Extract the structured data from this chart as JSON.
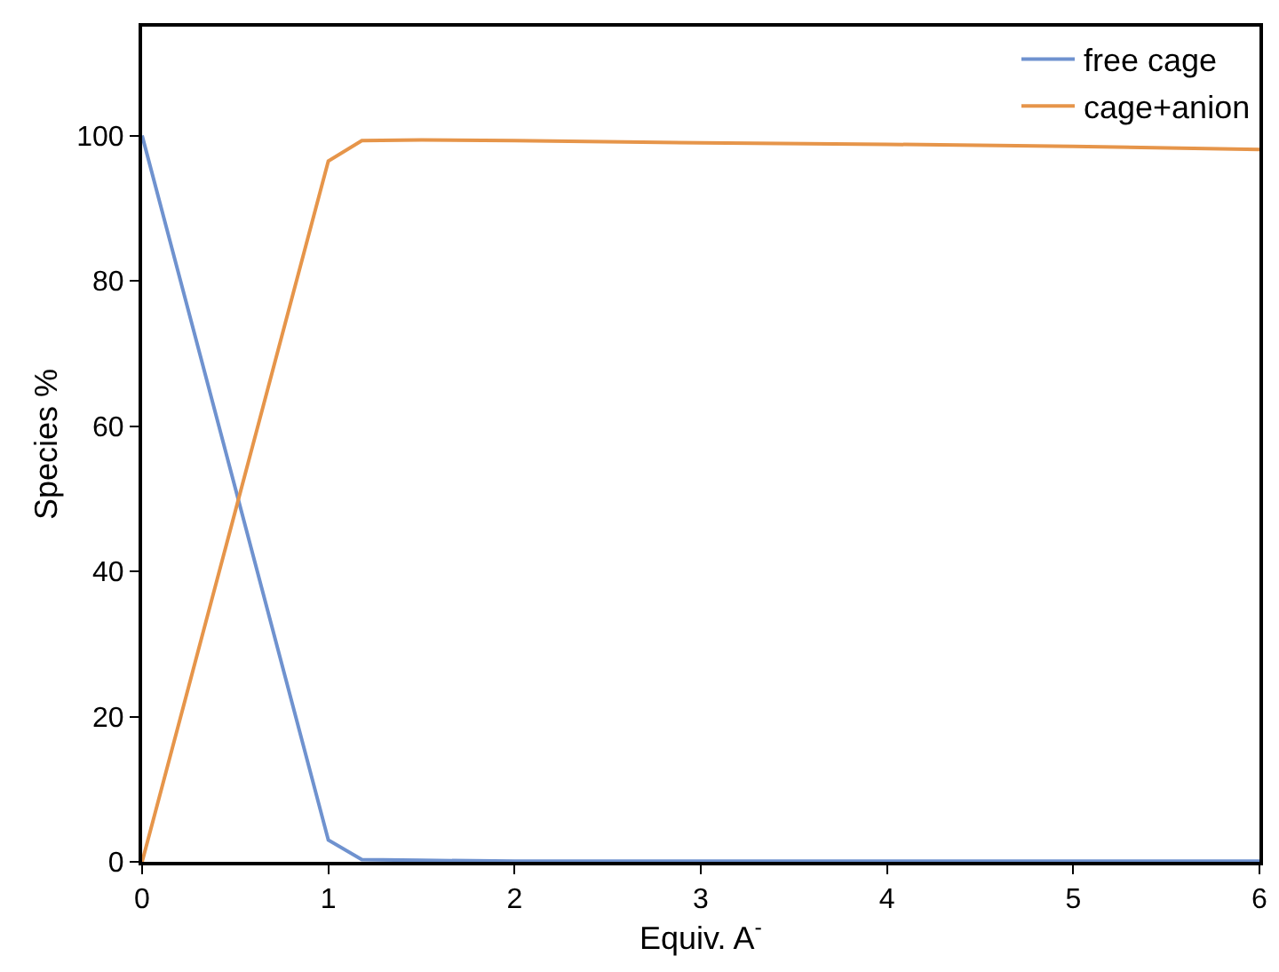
{
  "chart_data": {
    "type": "line",
    "xlabel": "Equiv. A$^{-}$",
    "ylabel": "Species %",
    "x": [
      0,
      1,
      1.18,
      1.5,
      2,
      3,
      4,
      5,
      6
    ],
    "series": [
      {
        "name": "free cage",
        "color": "#6f92cf",
        "values": [
          100,
          3,
          0.3,
          0.2,
          0.1,
          0.1,
          0.1,
          0.1,
          0.1
        ]
      },
      {
        "name": "cage+anion",
        "color": "#e6954a",
        "values": [
          0,
          96.5,
          99.3,
          99.4,
          99.3,
          99.0,
          98.8,
          98.5,
          98.1
        ]
      }
    ],
    "xlim": [
      0,
      6
    ],
    "xticks": [
      0,
      1,
      2,
      3,
      4,
      5,
      6
    ],
    "ylim": [
      0,
      115
    ],
    "yticks": [
      0,
      20,
      40,
      60,
      80,
      100
    ],
    "grid": false,
    "legend": "top right",
    "marker": "none",
    "line_style": "solid"
  }
}
